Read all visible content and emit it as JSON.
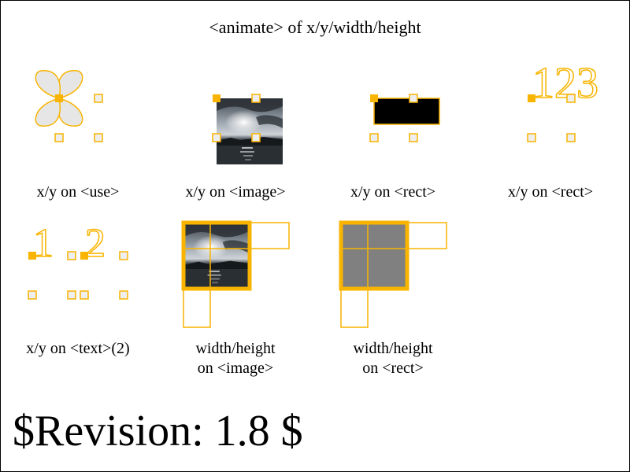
{
  "title": "<animate> of x/y/width/height",
  "colors": {
    "accent": "#f8b400",
    "marker_fill": "#eeeeee",
    "shape_fill": "#e6e6e6",
    "gray_fill": "#808080",
    "black": "#000000",
    "frame": "#000000"
  },
  "panels": [
    {
      "id": "use",
      "caption": "x/y on <use>"
    },
    {
      "id": "image",
      "caption": "x/y on <image>"
    },
    {
      "id": "rect",
      "caption": "x/y on <rect>"
    },
    {
      "id": "text123",
      "caption": "x/y on <rect>",
      "glyphs": "123"
    },
    {
      "id": "text2",
      "caption": "x/y on <text>(2)",
      "glyphs": [
        "1",
        "2"
      ]
    },
    {
      "id": "wh-image",
      "caption_line1": "width/height",
      "caption_line2": "on <image>"
    },
    {
      "id": "wh-rect",
      "caption_line1": "width/height",
      "caption_line2": "on <rect>"
    }
  ],
  "revision": "$Revision: 1.8 $"
}
